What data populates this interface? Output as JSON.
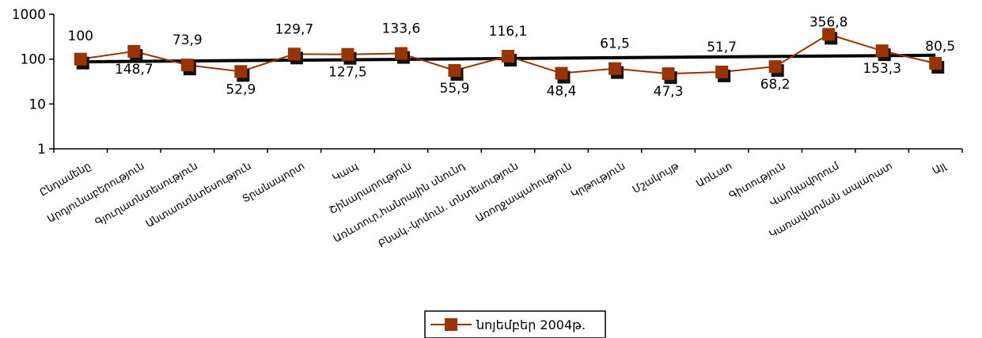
{
  "chart_data": {
    "type": "line",
    "y_scale": "log",
    "ylim": [
      1,
      1000
    ],
    "y_ticks": [
      "1",
      "10",
      "100",
      "1000"
    ],
    "grid": false,
    "legend_position": "bottom",
    "categories": [
      "Ընդամենը",
      "Արդյունաբերություն",
      "Գյուղատնտեսություն",
      "Անտառտնտեսություն",
      "Տրանսպորտ",
      "Կապ",
      "Շինարարություն",
      "Առևտուր,հանրային սնունդ",
      "Բնակ.-կոմուն. տնտեսություն",
      "Առողջապահություն",
      "Կրթություն",
      "Մշակույթ",
      "Առևստ",
      "Գիտություն",
      "Վարկավորում",
      "Կառավարման ապարատ",
      "Այլ"
    ],
    "series": [
      {
        "name": "նոյեմբեր 2004թ.",
        "color": "#993300",
        "marker": "square",
        "values": [
          100,
          148.7,
          73.9,
          52.9,
          129.7,
          127.5,
          133.6,
          55.9,
          116.1,
          48.4,
          61.5,
          47.3,
          51.7,
          68.2,
          356.8,
          153.3,
          80.5
        ],
        "data_labels": [
          "100",
          "148,7",
          "73,9",
          "52,9",
          "129,7",
          "127,5",
          "133,6",
          "55,9",
          "116,1",
          "48,4",
          "61,5",
          "47,3",
          "51,7",
          "68,2",
          "356,8",
          "153,3",
          "80,5"
        ]
      }
    ],
    "trendline": {
      "type": "exponential",
      "color": "#000000",
      "start_value": 87,
      "end_value": 122
    }
  }
}
